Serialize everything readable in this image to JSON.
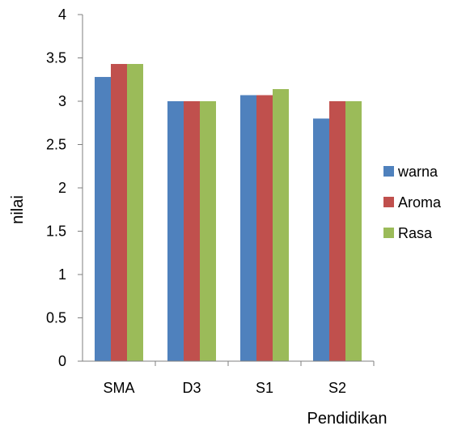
{
  "chart_data": {
    "type": "bar",
    "title": "",
    "xlabel": "Pendidikan",
    "ylabel": "nilai",
    "categories": [
      "SMA",
      "D3",
      "S1",
      "S2"
    ],
    "series": [
      {
        "name": "warna",
        "color": "#4f81bd",
        "values": [
          3.28,
          3.0,
          3.07,
          2.8
        ]
      },
      {
        "name": "Aroma",
        "color": "#c0504d",
        "values": [
          3.43,
          3.0,
          3.07,
          3.0
        ]
      },
      {
        "name": "Rasa",
        "color": "#9bbb59",
        "values": [
          3.43,
          3.0,
          3.14,
          3.0
        ]
      }
    ],
    "ylim": [
      0,
      4
    ],
    "yticks": [
      "0",
      "0.5",
      "1",
      "1.5",
      "2",
      "2.5",
      "3",
      "3.5",
      "4"
    ],
    "grid": false,
    "legend_position": "right"
  }
}
